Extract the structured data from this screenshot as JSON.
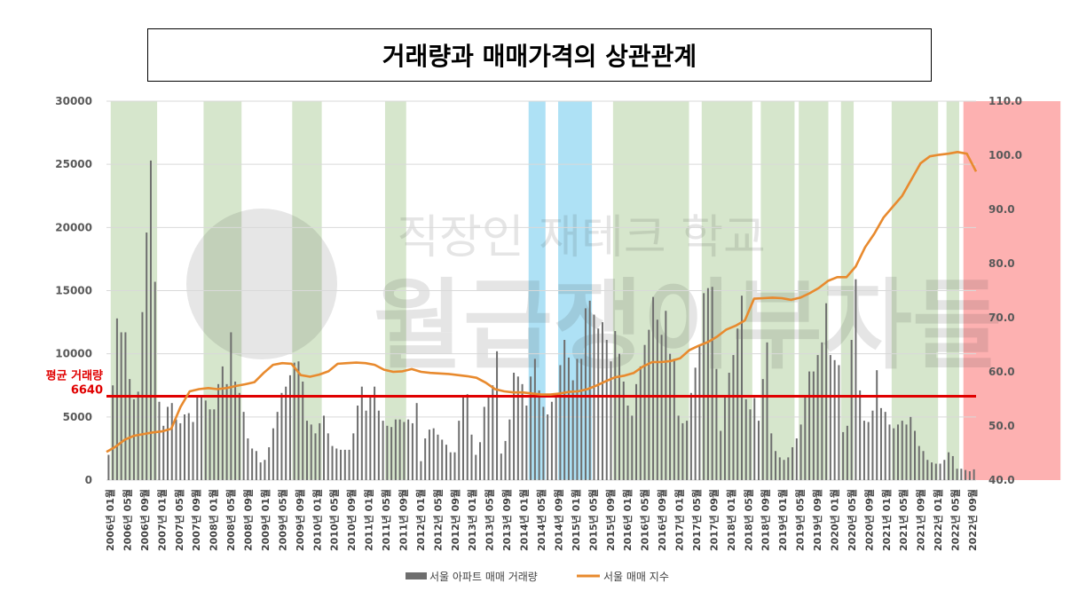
{
  "chart_data": {
    "type": "bar+line",
    "title": "거래량과 매매가격의 상관관계",
    "y_left_range": [
      0,
      30000
    ],
    "y_left_ticks": [
      "0",
      "5000",
      "10000",
      "15000",
      "20000",
      "25000",
      "30000"
    ],
    "y_right_range": [
      40.0,
      110.0
    ],
    "y_right_ticks": [
      "40.0",
      "50.0",
      "60.0",
      "70.0",
      "80.0",
      "90.0",
      "100.0",
      "110.0"
    ],
    "x_tick_labels": [
      "2006년 01월",
      "2006년 05월",
      "2006년 09월",
      "2007년 01월",
      "2007년 05월",
      "2007년 09월",
      "2008년 01월",
      "2008년 05월",
      "2008년 09월",
      "2009년 01월",
      "2009년 05월",
      "2009년 09월",
      "2010년 01월",
      "2010년 05월",
      "2010년 09월",
      "2011년 01월",
      "2011년 05월",
      "2011년 09월",
      "2012년 01월",
      "2012년 05월",
      "2012년 09월",
      "2013년 01월",
      "2013년 05월",
      "2013년 09월",
      "2014년 01월",
      "2014년 05월",
      "2014년 09월",
      "2015년 01월",
      "2015년 05월",
      "2015년 09월",
      "2016년 01월",
      "2016년 05월",
      "2016년 09월",
      "2017년 01월",
      "2017년 05월",
      "2017년 09월",
      "2018년 01월",
      "2018년 05월",
      "2018년 09월",
      "2019년 01월",
      "2019년 05월",
      "2019년 09월",
      "2020년 01월",
      "2020년 05월",
      "2020년 09월",
      "2021년 01월",
      "2021년 05월",
      "2021년 09월",
      "2022년 01월",
      "2022년 05월",
      "2022년 09월"
    ],
    "series": [
      {
        "name": "서울 아파트 매매 거래량",
        "type": "bar",
        "axis": "left",
        "values": [
          2000,
          7500,
          12800,
          11700,
          11700,
          8000,
          6400,
          7000,
          13300,
          19600,
          25300,
          15700,
          6200,
          4300,
          5800,
          6100,
          4800,
          4500,
          5200,
          5300,
          4600,
          6600,
          6700,
          6300,
          5600,
          5600,
          7600,
          9000,
          7600,
          11700,
          7800,
          6900,
          5400,
          3300,
          2500,
          2300,
          1400,
          1600,
          2600,
          4100,
          5400,
          6900,
          7400,
          8300,
          9300,
          9400,
          7800,
          4700,
          4400,
          3700,
          4500,
          5100,
          3700,
          2700,
          2500,
          2400,
          2400,
          2400,
          3700,
          5900,
          7400,
          5500,
          6700,
          7400,
          5500,
          4700,
          4300,
          4200,
          4800,
          4800,
          4600,
          4800,
          4500,
          6100,
          1500,
          3300,
          4000,
          4100,
          3600,
          3200,
          2800,
          2200,
          2200,
          4700,
          6700,
          6800,
          3600,
          2000,
          3000,
          5800,
          6700,
          7500,
          10200,
          2100,
          3100,
          4800,
          8500,
          8200,
          7600,
          5900,
          8200,
          9600,
          7100,
          5800,
          5200,
          6200,
          6600,
          9100,
          11100,
          9700,
          7900,
          9600,
          9600,
          13600,
          14200,
          13100,
          12000,
          12500,
          11100,
          9400,
          11800,
          10000,
          7800,
          5900,
          5100,
          7600,
          9000,
          10700,
          11900,
          14500,
          12700,
          11500,
          13400,
          10000,
          9600,
          5100,
          4500,
          4700,
          6900,
          8900,
          10700,
          14800,
          15200,
          15300,
          8800,
          3900,
          6600,
          8500,
          9900,
          12000,
          14600,
          6400,
          5600,
          6500,
          4700,
          8000,
          10900,
          3700,
          2300,
          1800,
          1600,
          1800,
          2600,
          3300,
          4400,
          6700,
          8600,
          8600,
          9900,
          10900,
          14000,
          9900,
          9500,
          9100,
          3800,
          4300,
          11100,
          15900,
          7100,
          4700,
          4600,
          5500,
          8700,
          5700,
          5400,
          4400,
          4100,
          4400,
          4700,
          4400,
          5000,
          3900,
          2700,
          2300,
          1600,
          1400,
          1300,
          1300,
          1600,
          2200,
          1900,
          900,
          900,
          800,
          700,
          850
        ]
      },
      {
        "name": "서울 매매 지수",
        "type": "line",
        "axis": "right",
        "values": [
          45.2,
          46.2,
          47.5,
          48.2,
          48.5,
          48.8,
          49.0,
          49.5,
          53.5,
          56.4,
          56.8,
          57.0,
          56.8,
          57.0,
          57.4,
          57.7,
          58.1,
          59.8,
          61.3,
          61.6,
          61.5,
          59.4,
          59.1,
          59.5,
          60.1,
          61.5,
          61.6,
          61.7,
          61.6,
          61.3,
          60.4,
          60.0,
          60.1,
          60.5,
          60.0,
          59.8,
          59.7,
          59.6,
          59.4,
          59.2,
          58.9,
          58.0,
          56.8,
          56.4,
          56.2,
          56.2,
          56.0,
          55.8,
          55.8,
          56.0,
          56.3,
          56.4,
          56.8,
          57.5,
          58.3,
          59.0,
          59.3,
          59.8,
          61.0,
          61.8,
          61.8,
          62.0,
          62.5,
          64.0,
          64.8,
          65.5,
          66.5,
          67.8,
          68.5,
          69.5,
          73.5,
          73.6,
          73.7,
          73.6,
          73.3,
          73.7,
          74.5,
          75.5,
          76.8,
          77.5,
          77.5,
          79.5,
          83.0,
          85.5,
          88.5,
          90.5,
          92.5,
          95.5,
          98.5,
          99.8,
          100.1,
          100.3,
          100.6,
          100.3,
          97.0
        ]
      }
    ],
    "bands": [
      {
        "color": "green",
        "from": 1,
        "to": 12
      },
      {
        "color": "green",
        "from": 23,
        "to": 32
      },
      {
        "color": "green",
        "from": 44,
        "to": 51
      },
      {
        "color": "green",
        "from": 66,
        "to": 71
      },
      {
        "color": "blue",
        "from": 100,
        "to": 104
      },
      {
        "color": "blue",
        "from": 107,
        "to": 115
      },
      {
        "color": "green",
        "from": 120,
        "to": 138
      },
      {
        "color": "green",
        "from": 141,
        "to": 153
      },
      {
        "color": "green",
        "from": 155,
        "to": 163
      },
      {
        "color": "green",
        "from": 164,
        "to": 171
      },
      {
        "color": "green",
        "from": 174,
        "to": 177
      },
      {
        "color": "green",
        "from": 186,
        "to": 197
      },
      {
        "color": "green",
        "from": 199,
        "to": 202
      },
      {
        "color": "red",
        "from": 203,
        "to": 226
      }
    ],
    "reference_line": {
      "value": 6640,
      "label": "평균 거래량",
      "value_label": "6640",
      "color": "#e00000"
    },
    "watermark": [
      "직장인 재테크 학교",
      "월급쟁이부자들"
    ],
    "colors": {
      "bar": "#6e6e6e",
      "line": "#e88a2e",
      "band_green": "#d6e6cc",
      "band_blue": "#aee1f5",
      "band_red": "#fdb1b1",
      "grid": "#d9d9d9"
    },
    "legend": {
      "position": "bottom",
      "items": [
        {
          "label": "서울 아파트 매매 거래량",
          "swatch": "bar"
        },
        {
          "label": "서울 매매 지수",
          "swatch": "line"
        }
      ]
    },
    "grid": true
  }
}
